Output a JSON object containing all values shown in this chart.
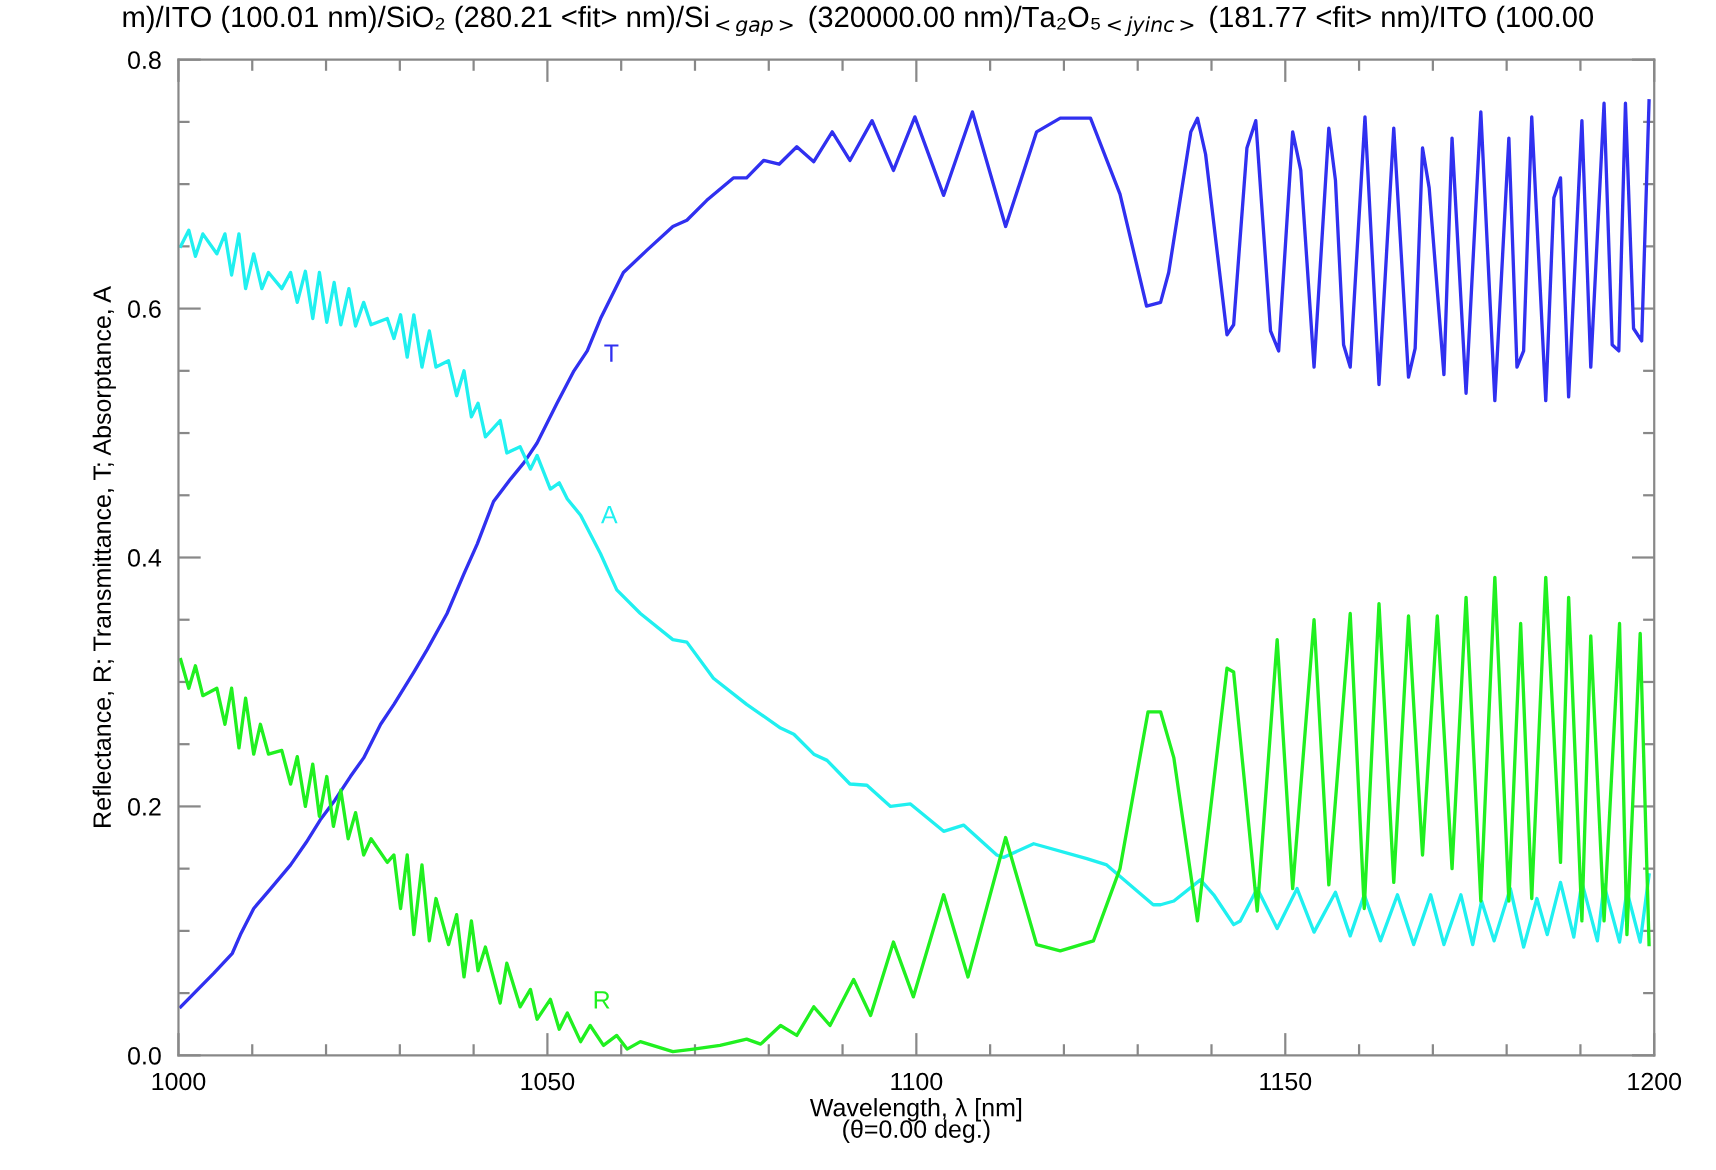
{
  "chart_data": {
    "type": "line",
    "title": "m)/ITO (100.01 nm)/SiO₂ (280.21 <fit> nm)/Si$_{<gap>}$ (320000.00 nm)/Ta₂O₅$_{<jyinc>}$ (181.77 <fit> nm)/ITO (100.00",
    "xlabel": "Wavelength, λ [nm]\n(θ=0.00 deg.)",
    "ylabel": "Reflectance, R; Transmittance, T; Absorptance, A",
    "xlim": [
      1000,
      1200
    ],
    "ylim": [
      0,
      0.8
    ],
    "xticks": [
      1000,
      {
        "value": 1010,
        "label": null
      },
      {
        "value": 1020,
        "label": null
      },
      {
        "value": 1030,
        "label": null
      },
      {
        "value": 1040,
        "label": null
      },
      1050,
      {
        "value": 1060,
        "label": null
      },
      {
        "value": 1070,
        "label": null
      },
      {
        "value": 1080,
        "label": null
      },
      {
        "value": 1090,
        "label": null
      },
      1100,
      {
        "value": 1110,
        "label": null
      },
      {
        "value": 1120,
        "label": null
      },
      {
        "value": 1130,
        "label": null
      },
      {
        "value": 1140,
        "label": null
      },
      1150,
      {
        "value": 1160,
        "label": null
      },
      {
        "value": 1170,
        "label": null
      },
      {
        "value": 1180,
        "label": null
      },
      {
        "value": 1190,
        "label": null
      },
      1200
    ],
    "yticks": [
      {
        "value": 0,
        "label": "0.0"
      },
      {
        "value": 0.05,
        "label": null
      },
      {
        "value": 0.1,
        "label": null
      },
      {
        "value": 0.15,
        "label": null
      },
      0.2,
      {
        "value": 0.25,
        "label": null
      },
      {
        "value": 0.3,
        "label": null
      },
      {
        "value": 0.35,
        "label": null
      },
      0.4,
      {
        "value": 0.45,
        "label": null
      },
      {
        "value": 0.5,
        "label": null
      },
      {
        "value": 0.55,
        "label": null
      },
      0.6,
      {
        "value": 0.65,
        "label": null
      },
      {
        "value": 0.7,
        "label": null
      },
      {
        "value": 0.75,
        "label": null
      },
      0.8
    ],
    "grid": false,
    "legend": false,
    "marker": "none",
    "line_style": "solid",
    "series": [
      {
        "name": "T",
        "color": "#3030f0",
        "x": [
          1000.3,
          1004.8,
          1007.3,
          1008.4,
          1010.2,
          1012.5,
          1015.2,
          1017.3,
          1019.2,
          1021.2,
          1023.3,
          1025.1,
          1027.4,
          1029.2,
          1031.9,
          1033.7,
          1036.4,
          1038.7,
          1040.5,
          1042.7,
          1045.0,
          1046.8,
          1048.6,
          1051.3,
          1053.6,
          1055.4,
          1057.2,
          1060.3,
          1063.5,
          1067.0,
          1068.9,
          1071.6,
          1075.2,
          1077.0,
          1079.3,
          1081.4,
          1083.8,
          1086.1,
          1088.6,
          1091.0,
          1094.0,
          1096.9,
          1099.8,
          1103.7,
          1107.6,
          1112.1,
          1116.3,
          1119.5,
          1123.6,
          1127.6,
          1131.2,
          1133.1,
          1134.2,
          1137.2,
          1138.1,
          1139.2,
          1142.1,
          1143.0,
          1144.8,
          1146.0,
          1148.0,
          1149.1,
          1151.0,
          1152.1,
          1153.9,
          1155.9,
          1156.8,
          1157.9,
          1158.8,
          1160.8,
          1162.7,
          1164.7,
          1166.7,
          1167.6,
          1168.6,
          1169.5,
          1171.5,
          1172.6,
          1174.5,
          1176.5,
          1178.4,
          1180.3,
          1181.4,
          1182.3,
          1183.4,
          1185.3,
          1186.4,
          1187.3,
          1188.4,
          1190.2,
          1191.4,
          1193.2,
          1194.3,
          1195.2,
          1196.1,
          1197.2,
          1198.3,
          1199.3
        ],
        "values": [
          0.039,
          0.066,
          0.082,
          0.097,
          0.118,
          0.134,
          0.153,
          0.171,
          0.189,
          0.205,
          0.224,
          0.239,
          0.266,
          0.282,
          0.308,
          0.326,
          0.355,
          0.387,
          0.411,
          0.445,
          0.463,
          0.476,
          0.492,
          0.524,
          0.55,
          0.566,
          0.592,
          0.629,
          0.647,
          0.666,
          0.671,
          0.687,
          0.705,
          0.705,
          0.719,
          0.716,
          0.73,
          0.718,
          0.742,
          0.719,
          0.751,
          0.711,
          0.754,
          0.691,
          0.758,
          0.666,
          0.742,
          0.753,
          0.753,
          0.692,
          0.602,
          0.605,
          0.629,
          0.742,
          0.753,
          0.724,
          0.579,
          0.587,
          0.729,
          0.751,
          0.582,
          0.566,
          0.742,
          0.711,
          0.553,
          0.745,
          0.703,
          0.571,
          0.553,
          0.754,
          0.539,
          0.745,
          0.545,
          0.568,
          0.729,
          0.697,
          0.547,
          0.737,
          0.532,
          0.758,
          0.526,
          0.737,
          0.553,
          0.566,
          0.754,
          0.526,
          0.689,
          0.705,
          0.529,
          0.751,
          0.553,
          0.765,
          0.571,
          0.566,
          0.765,
          0.584,
          0.574,
          0.767
        ]
      },
      {
        "name": "A",
        "color": "#20f0f0",
        "x": [
          1000.3,
          1001.4,
          1002.3,
          1003.3,
          1005.2,
          1006.3,
          1007.2,
          1008.2,
          1009.1,
          1010.2,
          1011.3,
          1012.2,
          1014.0,
          1015.2,
          1016.1,
          1017.2,
          1018.2,
          1019.1,
          1020.1,
          1021.1,
          1022.0,
          1023.1,
          1024.0,
          1025.1,
          1026.1,
          1028.3,
          1029.2,
          1030.1,
          1031.0,
          1031.9,
          1033.0,
          1034.0,
          1034.9,
          1036.6,
          1037.7,
          1038.7,
          1039.7,
          1040.6,
          1041.6,
          1043.6,
          1044.5,
          1046.3,
          1047.7,
          1048.6,
          1050.4,
          1051.6,
          1052.7,
          1054.5,
          1057.2,
          1059.4,
          1062.6,
          1067.0,
          1068.9,
          1072.5,
          1077.0,
          1081.6,
          1083.4,
          1086.1,
          1087.9,
          1091.0,
          1093.3,
          1096.5,
          1099.2,
          1103.7,
          1106.4,
          1110.9,
          1111.8,
          1115.9,
          1123.1,
          1125.8,
          1132.1,
          1133.1,
          1134.9,
          1138.5,
          1140.3,
          1143.0,
          1143.9,
          1146.2,
          1148.9,
          1151.6,
          1153.9,
          1156.8,
          1158.8,
          1160.7,
          1162.9,
          1165.2,
          1167.4,
          1169.7,
          1171.5,
          1173.8,
          1175.4,
          1176.6,
          1178.3,
          1180.5,
          1182.3,
          1184.1,
          1185.5,
          1187.3,
          1189.1,
          1190.2,
          1192.3,
          1193.2,
          1195.3,
          1196.3,
          1198.1,
          1199.3
        ],
        "values": [
          0.65,
          0.663,
          0.642,
          0.66,
          0.644,
          0.66,
          0.627,
          0.66,
          0.616,
          0.644,
          0.616,
          0.629,
          0.616,
          0.629,
          0.605,
          0.63,
          0.592,
          0.629,
          0.589,
          0.621,
          0.587,
          0.616,
          0.586,
          0.605,
          0.587,
          0.592,
          0.576,
          0.595,
          0.561,
          0.595,
          0.553,
          0.582,
          0.553,
          0.558,
          0.53,
          0.55,
          0.513,
          0.524,
          0.497,
          0.51,
          0.484,
          0.489,
          0.471,
          0.482,
          0.455,
          0.46,
          0.447,
          0.434,
          0.403,
          0.374,
          0.355,
          0.334,
          0.332,
          0.303,
          0.282,
          0.263,
          0.258,
          0.242,
          0.237,
          0.218,
          0.217,
          0.2,
          0.202,
          0.18,
          0.185,
          0.161,
          0.159,
          0.17,
          0.158,
          0.153,
          0.121,
          0.121,
          0.124,
          0.141,
          0.129,
          0.105,
          0.108,
          0.134,
          0.102,
          0.134,
          0.099,
          0.131,
          0.096,
          0.129,
          0.092,
          0.129,
          0.089,
          0.129,
          0.089,
          0.129,
          0.089,
          0.124,
          0.092,
          0.134,
          0.087,
          0.126,
          0.097,
          0.139,
          0.095,
          0.139,
          0.092,
          0.137,
          0.091,
          0.132,
          0.091,
          0.145
        ]
      },
      {
        "name": "R",
        "color": "#20f020",
        "x": [
          1000.3,
          1001.4,
          1002.3,
          1003.3,
          1005.2,
          1006.3,
          1007.2,
          1008.2,
          1009.1,
          1010.2,
          1011.1,
          1012.2,
          1014.0,
          1015.2,
          1016.1,
          1017.2,
          1018.2,
          1019.1,
          1020.1,
          1021.0,
          1022.0,
          1023.0,
          1024.0,
          1025.1,
          1026.1,
          1028.3,
          1029.2,
          1030.1,
          1031.0,
          1031.9,
          1033.0,
          1034.0,
          1034.9,
          1036.6,
          1037.7,
          1038.7,
          1039.7,
          1040.6,
          1041.6,
          1043.6,
          1044.5,
          1046.3,
          1047.7,
          1048.6,
          1050.4,
          1051.6,
          1052.7,
          1054.5,
          1055.8,
          1057.6,
          1059.4,
          1060.8,
          1062.6,
          1067.0,
          1069.8,
          1073.4,
          1077.0,
          1078.9,
          1081.6,
          1083.8,
          1086.1,
          1088.3,
          1091.5,
          1093.8,
          1096.9,
          1099.6,
          1103.7,
          1107.0,
          1112.1,
          1116.3,
          1119.5,
          1124.0,
          1127.6,
          1131.4,
          1133.1,
          1134.9,
          1138.1,
          1142.1,
          1143.0,
          1146.2,
          1148.9,
          1151.0,
          1153.9,
          1155.9,
          1158.8,
          1160.7,
          1162.7,
          1164.7,
          1166.7,
          1168.6,
          1170.6,
          1172.6,
          1174.5,
          1176.5,
          1178.4,
          1180.3,
          1181.9,
          1183.4,
          1185.3,
          1187.3,
          1188.4,
          1190.2,
          1191.4,
          1193.2,
          1195.3,
          1196.3,
          1198.1,
          1199.3
        ],
        "values": [
          0.318,
          0.295,
          0.313,
          0.289,
          0.295,
          0.266,
          0.295,
          0.247,
          0.287,
          0.242,
          0.266,
          0.242,
          0.245,
          0.218,
          0.24,
          0.2,
          0.234,
          0.192,
          0.224,
          0.184,
          0.213,
          0.174,
          0.195,
          0.161,
          0.174,
          0.155,
          0.161,
          0.118,
          0.161,
          0.097,
          0.153,
          0.092,
          0.126,
          0.089,
          0.113,
          0.063,
          0.108,
          0.068,
          0.087,
          0.042,
          0.074,
          0.039,
          0.053,
          0.029,
          0.045,
          0.021,
          0.034,
          0.011,
          0.024,
          0.008,
          0.016,
          0.005,
          0.011,
          0.003,
          0.005,
          0.008,
          0.013,
          0.009,
          0.024,
          0.016,
          0.039,
          0.024,
          0.061,
          0.032,
          0.091,
          0.047,
          0.129,
          0.063,
          0.175,
          0.089,
          0.084,
          0.092,
          0.15,
          0.276,
          0.276,
          0.239,
          0.108,
          0.311,
          0.308,
          0.116,
          0.334,
          0.134,
          0.35,
          0.137,
          0.355,
          0.118,
          0.363,
          0.139,
          0.353,
          0.161,
          0.353,
          0.15,
          0.368,
          0.124,
          0.384,
          0.124,
          0.347,
          0.126,
          0.384,
          0.155,
          0.368,
          0.108,
          0.337,
          0.108,
          0.347,
          0.097,
          0.339,
          0.089
        ]
      }
    ]
  }
}
